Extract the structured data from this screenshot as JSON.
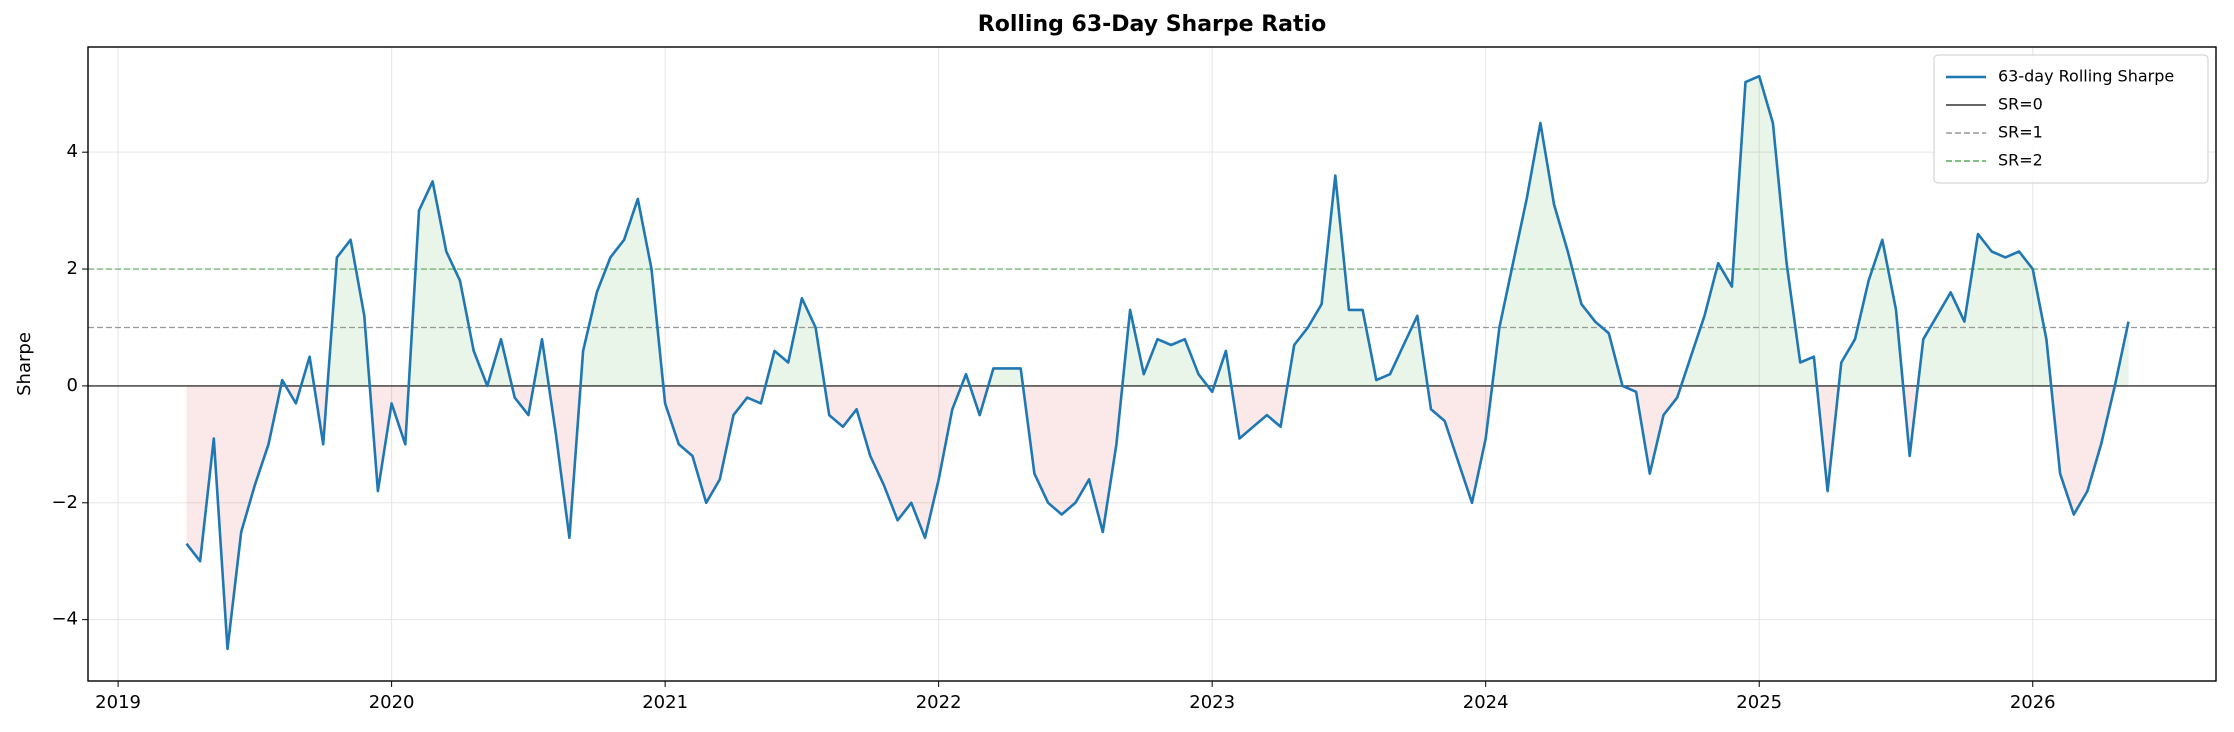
{
  "chart_data": {
    "type": "line",
    "title": "Rolling 63-Day Sharpe Ratio",
    "y_label": "Sharpe",
    "x": [
      2019.25,
      2019.3,
      2019.35,
      2019.4,
      2019.45,
      2019.5,
      2019.55,
      2019.6,
      2019.65,
      2019.7,
      2019.75,
      2019.8,
      2019.85,
      2019.9,
      2019.95,
      2020,
      2020.05,
      2020.1,
      2020.15,
      2020.2,
      2020.25,
      2020.3,
      2020.35,
      2020.4,
      2020.45,
      2020.5,
      2020.55,
      2020.6,
      2020.65,
      2020.7,
      2020.75,
      2020.8,
      2020.85,
      2020.9,
      2020.95,
      2021,
      2021.05,
      2021.1,
      2021.15,
      2021.2,
      2021.25,
      2021.3,
      2021.35,
      2021.4,
      2021.45,
      2021.5,
      2021.55,
      2021.6,
      2021.65,
      2021.7,
      2021.75,
      2021.8,
      2021.85,
      2021.9,
      2021.95,
      2022,
      2022.05,
      2022.1,
      2022.15,
      2022.2,
      2022.25,
      2022.3,
      2022.35,
      2022.4,
      2022.45,
      2022.5,
      2022.55,
      2022.6,
      2022.65,
      2022.7,
      2022.75,
      2022.8,
      2022.85,
      2022.9,
      2022.95,
      2023,
      2023.05,
      2023.1,
      2023.15,
      2023.2,
      2023.25,
      2023.3,
      2023.35,
      2023.4,
      2023.45,
      2023.5,
      2023.55,
      2023.6,
      2023.65,
      2023.7,
      2023.75,
      2023.8,
      2023.85,
      2023.9,
      2023.95,
      2024,
      2024.05,
      2024.1,
      2024.15,
      2024.2,
      2024.25,
      2024.3,
      2024.35,
      2024.4,
      2024.45,
      2024.5,
      2024.55,
      2024.6,
      2024.65,
      2024.7,
      2024.75,
      2024.8,
      2024.85,
      2024.9,
      2024.95,
      2025,
      2025.05,
      2025.1,
      2025.15,
      2025.2,
      2025.25,
      2025.3,
      2025.35,
      2025.4,
      2025.45,
      2025.5,
      2025.55,
      2025.6,
      2025.65,
      2025.7,
      2025.75,
      2025.8,
      2025.85,
      2025.9,
      2025.95,
      2026,
      2026.05,
      2026.1,
      2026.15,
      2026.2,
      2026.25,
      2026.3,
      2026.35
    ],
    "series": [
      {
        "name": "63-day Rolling Sharpe",
        "color": "#1f77b4",
        "values": [
          -2.7,
          -3.0,
          -0.9,
          -4.5,
          -2.5,
          -1.7,
          -1.0,
          0.1,
          -0.3,
          0.5,
          -1.0,
          2.2,
          2.5,
          1.2,
          -1.8,
          -0.3,
          -1.0,
          3.0,
          3.5,
          2.3,
          1.8,
          0.6,
          0.0,
          0.8,
          -0.2,
          -0.5,
          0.8,
          -0.8,
          -2.6,
          0.6,
          1.6,
          2.2,
          2.5,
          3.2,
          2.0,
          -0.3,
          -1.0,
          -1.2,
          -2.0,
          -1.6,
          -0.5,
          -0.2,
          -0.3,
          0.6,
          0.4,
          1.5,
          1.0,
          -0.5,
          -0.7,
          -0.4,
          -1.2,
          -1.7,
          -2.3,
          -2.0,
          -2.6,
          -1.6,
          -0.4,
          0.2,
          -0.5,
          0.3,
          0.3,
          0.3,
          -1.5,
          -2.0,
          -2.2,
          -2.0,
          -1.6,
          -2.5,
          -1.0,
          1.3,
          0.2,
          0.8,
          0.7,
          0.8,
          0.2,
          -0.1,
          0.6,
          -0.9,
          -0.7,
          -0.5,
          -0.7,
          0.7,
          1.0,
          1.4,
          3.6,
          1.3,
          1.3,
          0.1,
          0.2,
          0.7,
          1.2,
          -0.4,
          -0.6,
          -1.3,
          -2.0,
          -0.9,
          1.0,
          2.1,
          3.2,
          4.5,
          3.1,
          2.3,
          1.4,
          1.1,
          0.9,
          0.0,
          -0.1,
          -1.5,
          -0.5,
          -0.2,
          0.5,
          1.2,
          2.1,
          1.7,
          5.2,
          5.3,
          4.5,
          2.1,
          0.4,
          0.5,
          -1.8,
          0.4,
          0.8,
          1.8,
          2.5,
          1.3,
          -1.2,
          0.8,
          1.2,
          1.6,
          1.1,
          2.6,
          2.3,
          2.2,
          2.3,
          2.0,
          0.8,
          -1.5,
          -2.2,
          -1.8,
          -1.0,
          0.0,
          1.1
        ]
      }
    ],
    "reference_lines": [
      {
        "name": "SR=0",
        "value": 0,
        "color": "#333333",
        "style": "solid"
      },
      {
        "name": "SR=1",
        "value": 1,
        "color": "#999999",
        "style": "dashed"
      },
      {
        "name": "SR=2",
        "value": 2,
        "color": "#5aa85a",
        "style": "dashed"
      }
    ],
    "fill_colors": {
      "positive": "#2ca02c",
      "negative": "#d62728"
    },
    "xlim": [
      2018.89,
      2026.67
    ],
    "ylim": [
      -5.05,
      5.8
    ],
    "xticks": [
      2019,
      2020,
      2021,
      2022,
      2023,
      2024,
      2025,
      2026
    ],
    "yticks": [
      {
        "value": -4,
        "label": "−4"
      },
      {
        "value": -2,
        "label": "−2"
      },
      0,
      2,
      4
    ],
    "grid": true,
    "legend": "upper right"
  }
}
